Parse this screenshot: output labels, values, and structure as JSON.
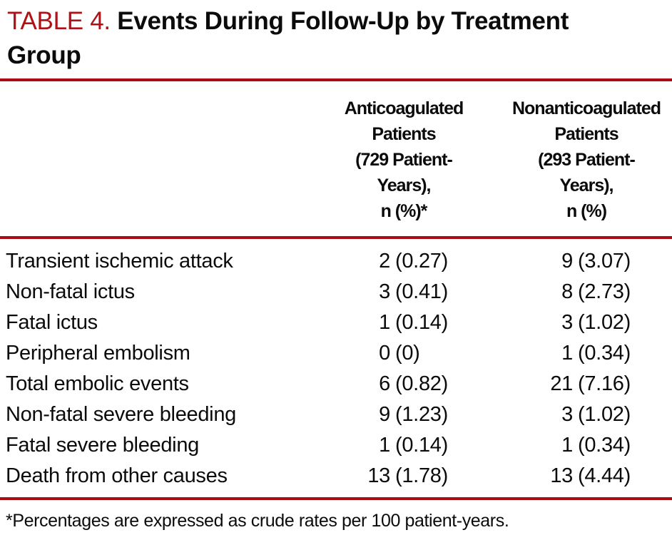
{
  "title": {
    "label": "TABLE 4.",
    "text": "Events During Follow-Up by Treatment Group"
  },
  "table": {
    "header": {
      "events_column": "",
      "anticoagulated": "Anticoagulated\nPatients\n(729 Patient-\nYears),\nn (%)*",
      "nonanticoagulated": "Nonanticoagulated\nPatients\n(293 Patient-\nYears),\nn (%)"
    },
    "rows": [
      {
        "label": "Transient ischemic attack",
        "ac_n": "2",
        "ac_pct": "(0.27)",
        "nac_n": "9",
        "nac_pct": "(3.07)"
      },
      {
        "label": "Non-fatal ictus",
        "ac_n": "3",
        "ac_pct": "(0.41)",
        "nac_n": "8",
        "nac_pct": "(2.73)"
      },
      {
        "label": "Fatal ictus",
        "ac_n": "1",
        "ac_pct": "(0.14)",
        "nac_n": "3",
        "nac_pct": "(1.02)"
      },
      {
        "label": "Peripheral embolism",
        "ac_n": "0",
        "ac_pct": "(0)",
        "nac_n": "1",
        "nac_pct": "(0.34)"
      },
      {
        "label": "Total embolic events",
        "ac_n": "6",
        "ac_pct": "(0.82)",
        "nac_n": "21",
        "nac_pct": "(7.16)"
      },
      {
        "label": "Non-fatal severe bleeding",
        "ac_n": "9",
        "ac_pct": "(1.23)",
        "nac_n": "3",
        "nac_pct": "(1.02)"
      },
      {
        "label": "Fatal severe bleeding",
        "ac_n": "1",
        "ac_pct": "(0.14)",
        "nac_n": "1",
        "nac_pct": "(0.34)"
      },
      {
        "label": "Death from other causes",
        "ac_n": "13",
        "ac_pct": "(1.78)",
        "nac_n": "13",
        "nac_pct": "(4.44)"
      }
    ]
  },
  "footnote": "*Percentages are expressed as crude rates per 100 patient-years.",
  "colors": {
    "rule_red": "#a90d13",
    "title_red": "#b01116",
    "text": "#0b0b0b",
    "background": "#ffffff"
  }
}
